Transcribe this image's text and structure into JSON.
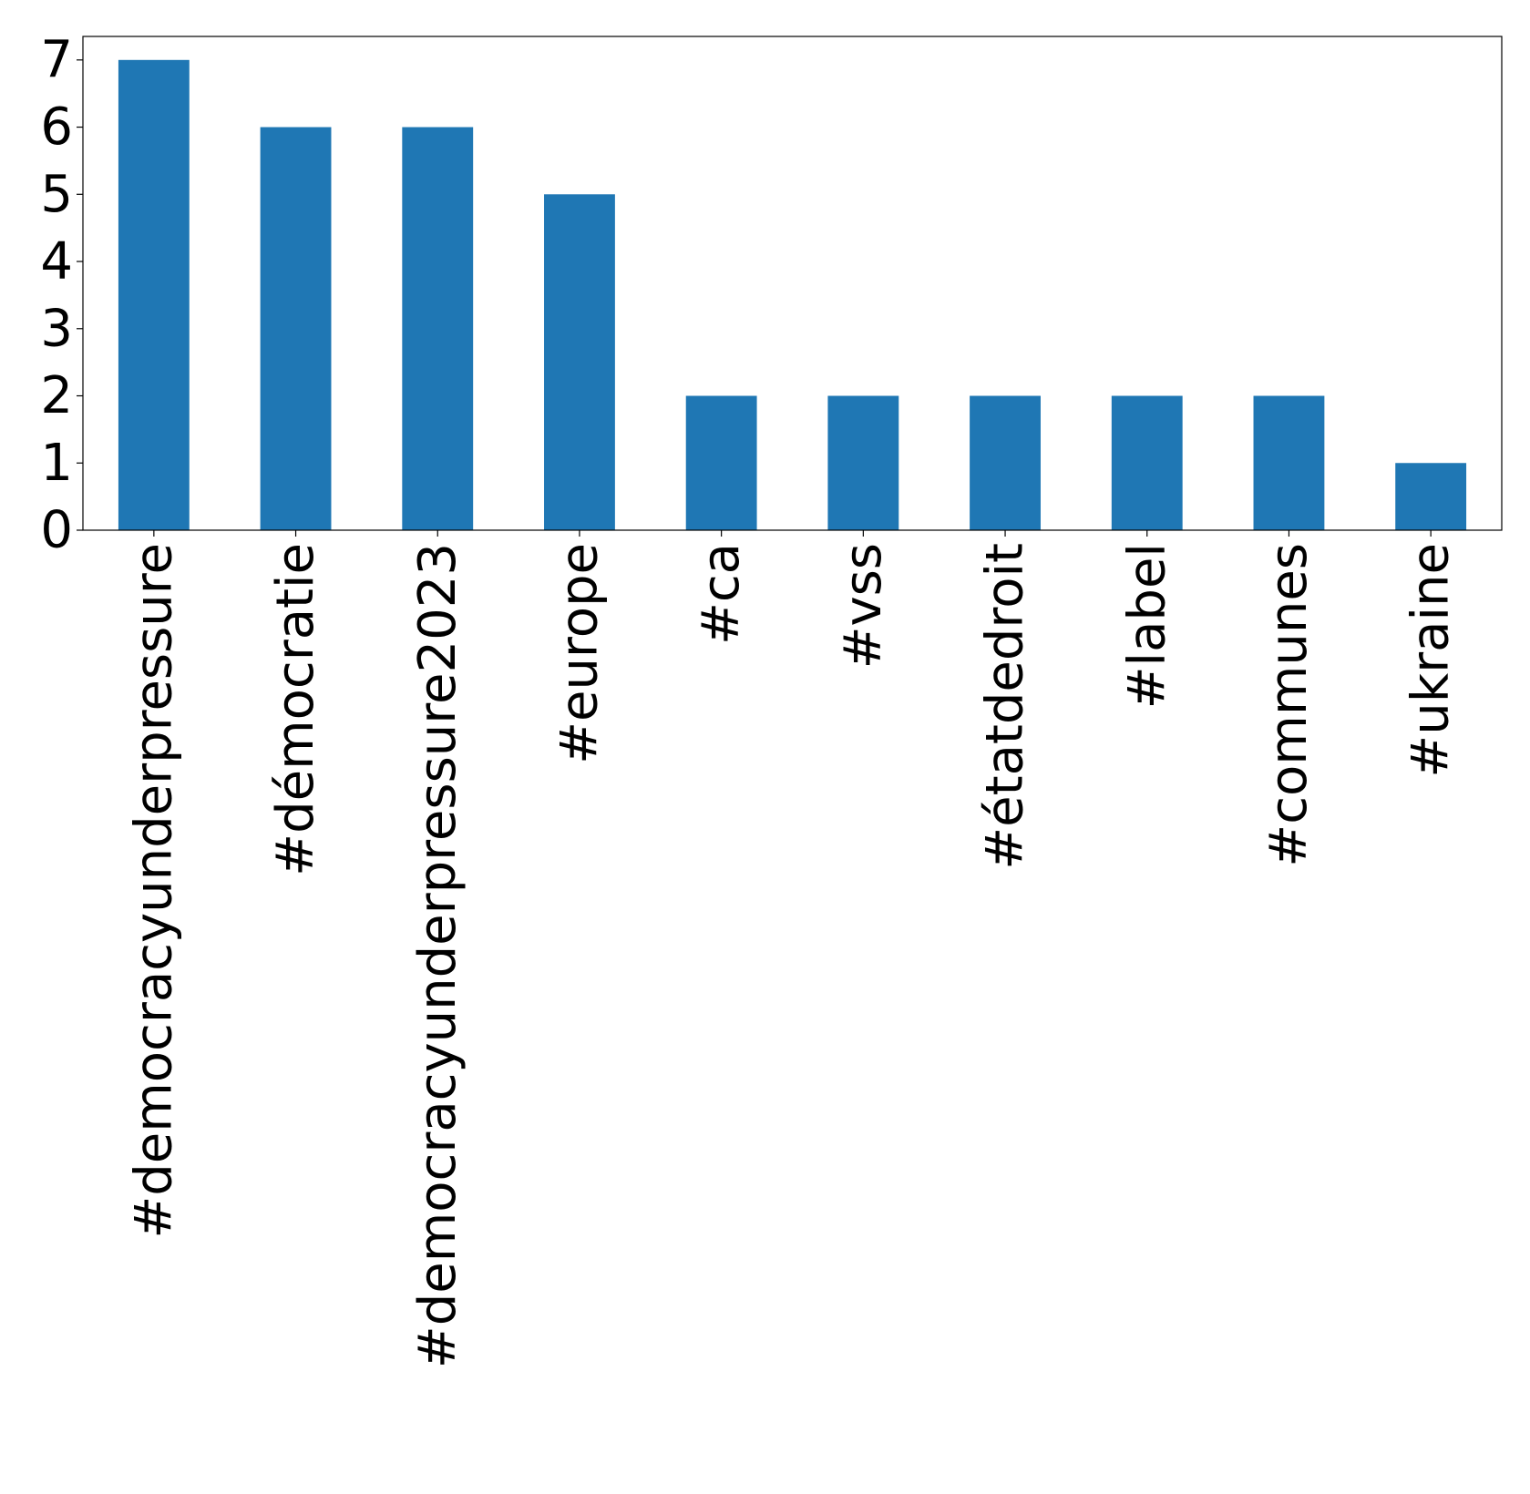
{
  "chart_data": {
    "type": "bar",
    "title": "",
    "xlabel": "",
    "ylabel": "",
    "categories": [
      "#democracyunderpressure",
      "#démocratie",
      "#democracyunderpressure2023",
      "#europe",
      "#ca",
      "#vss",
      "#étatdedroit",
      "#label",
      "#communes",
      "#ukraine"
    ],
    "values": [
      7,
      6,
      6,
      5,
      2,
      2,
      2,
      2,
      2,
      1
    ],
    "ylim": [
      0,
      7.35
    ],
    "yticks": [
      "0",
      "1",
      "2",
      "3",
      "4",
      "5",
      "6",
      "7"
    ],
    "grid": false,
    "legend": "none",
    "bar_color": "#1f77b4"
  }
}
